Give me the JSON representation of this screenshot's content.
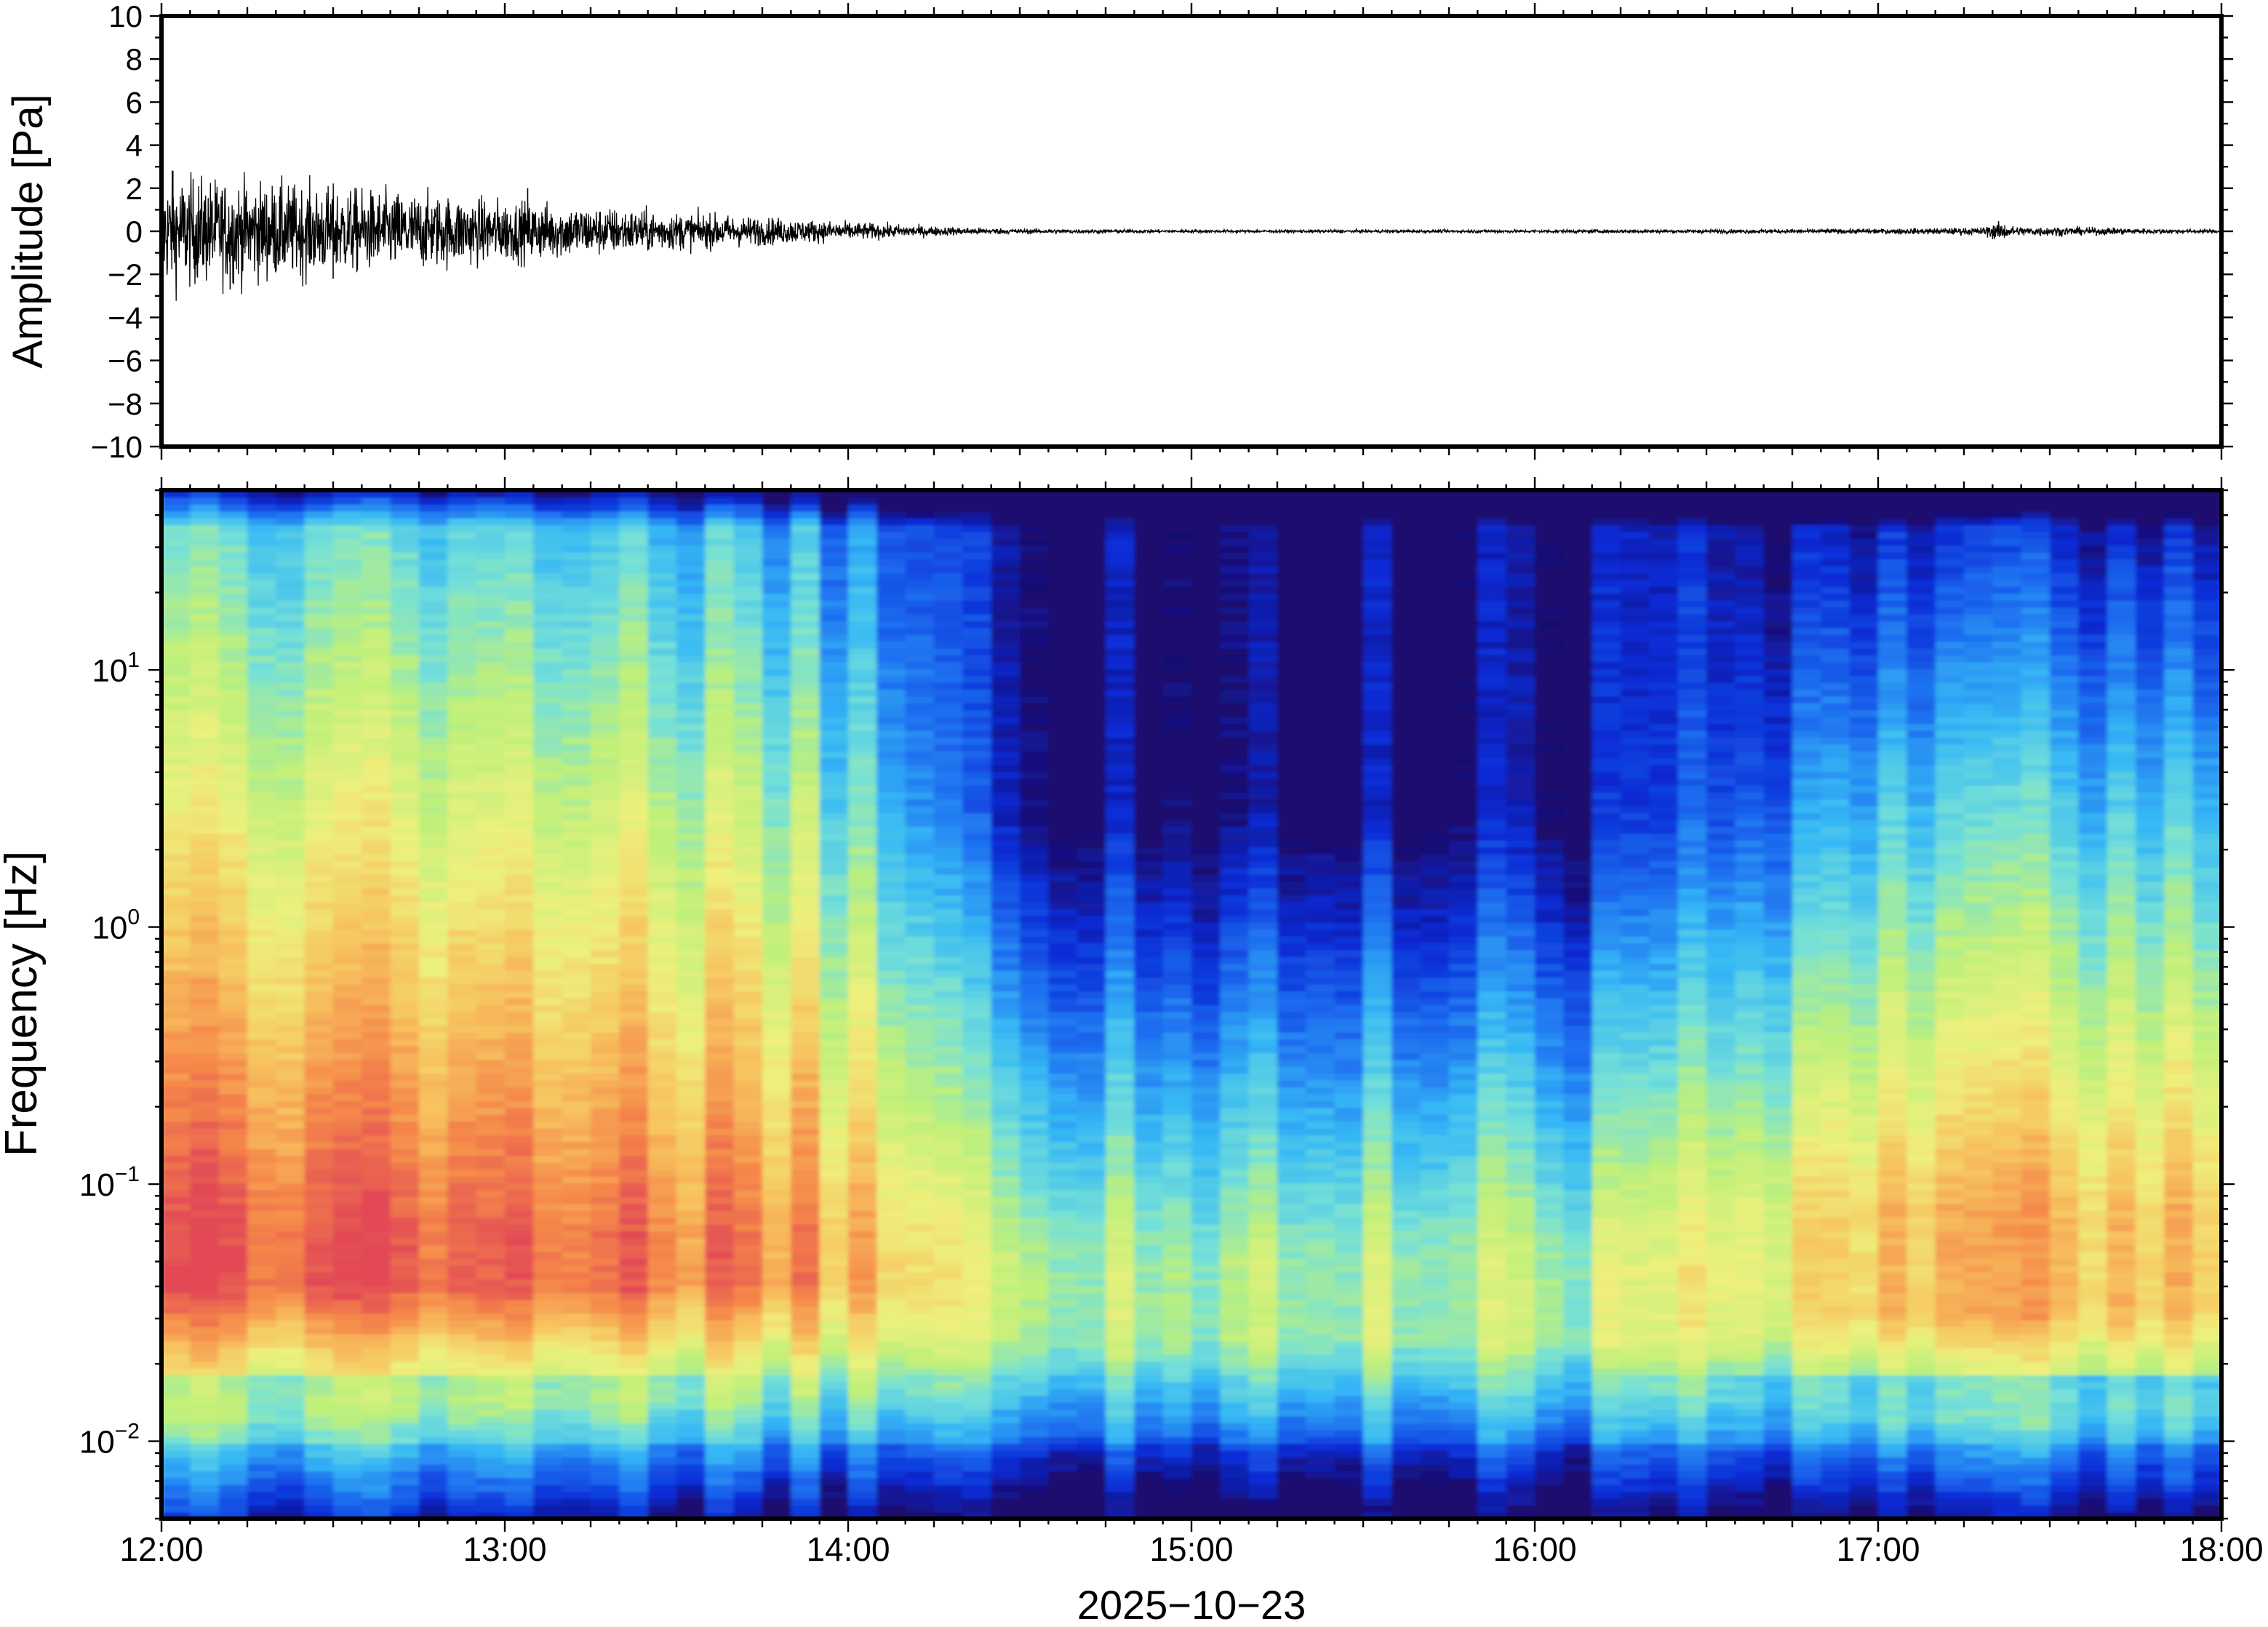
{
  "chart_data": [
    {
      "type": "line",
      "ylabel": "Amplitude [Pa]",
      "ylim": [
        -10,
        10
      ],
      "y_ticks": [
        10,
        8,
        6,
        4,
        2,
        0,
        -2,
        -4,
        -6,
        -8,
        -10
      ],
      "y_tick_labels": [
        "10",
        "8",
        "6",
        "4",
        "2",
        "0",
        "−2",
        "−4",
        "−6",
        "−8",
        "−10"
      ],
      "xlim": [
        "12:00",
        "18:00"
      ],
      "envelope": {
        "x_hours": [
          12.0,
          12.25,
          12.5,
          12.75,
          13.0,
          13.25,
          13.5,
          13.75,
          14.0,
          14.25,
          14.5,
          15.0,
          15.5,
          16.0,
          16.5,
          17.0,
          17.3,
          17.35,
          17.4,
          17.5,
          17.8,
          18.0
        ],
        "amplitude_pa": [
          1.8,
          1.6,
          1.4,
          1.2,
          1.0,
          0.8,
          0.6,
          0.45,
          0.3,
          0.15,
          0.08,
          0.05,
          0.05,
          0.05,
          0.06,
          0.08,
          0.12,
          0.3,
          0.15,
          0.15,
          0.08,
          0.06
        ]
      },
      "peaks": [
        {
          "x": "12:02",
          "y": 2.8
        },
        {
          "x": "12:12",
          "y": -2.7
        },
        {
          "x": "12:30",
          "y": -2.2
        },
        {
          "x": "13:04",
          "y": 2.0
        }
      ]
    },
    {
      "type": "heatmap",
      "xlabel": "2025−10−23",
      "ylabel": "Frequency [Hz]",
      "y_scale": "log",
      "ylim": [
        0.005,
        50
      ],
      "y_ticks": [
        0.01,
        0.1,
        1,
        10
      ],
      "y_tick_labels": [
        {
          "base": "10",
          "exp": "−2"
        },
        {
          "base": "10",
          "exp": "−1"
        },
        {
          "base": "10",
          "exp": "0"
        },
        {
          "base": "10",
          "exp": "1"
        }
      ],
      "x_ticks": [
        "12:00",
        "13:00",
        "14:00",
        "15:00",
        "16:00",
        "17:00",
        "18:00"
      ],
      "colormap": [
        "#1a0b6e",
        "#0a2bd6",
        "#1e6ff0",
        "#36b8f5",
        "#74e0d8",
        "#bff07a",
        "#eef07c",
        "#f7c35e",
        "#f5874a",
        "#e24a55"
      ],
      "notes": "Broadband high energy 12:00–14:00 peaking near 0.05–0.1 Hz, decaying after 14:30; low energy above 1 Hz after 14:30; renewed energy near 0.05–0.1 Hz after 16:30."
    }
  ]
}
